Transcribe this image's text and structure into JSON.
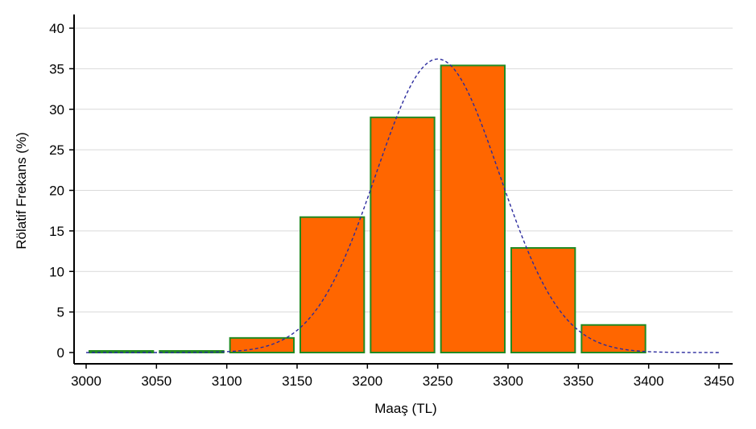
{
  "chart_data": {
    "type": "bar",
    "title": "",
    "xlabel": "Maaş (TL)",
    "ylabel": "Rölatif Frekans (%)",
    "xlim": [
      3000,
      3450
    ],
    "ylim": [
      -1.5,
      42
    ],
    "bin_width": 50,
    "bins": [
      {
        "start": 3000,
        "end": 3050,
        "value": 0.2
      },
      {
        "start": 3050,
        "end": 3100,
        "value": 0.2
      },
      {
        "start": 3100,
        "end": 3150,
        "value": 1.8
      },
      {
        "start": 3150,
        "end": 3200,
        "value": 16.7
      },
      {
        "start": 3200,
        "end": 3250,
        "value": 29.0
      },
      {
        "start": 3250,
        "end": 3300,
        "value": 35.4
      },
      {
        "start": 3300,
        "end": 3350,
        "value": 12.9
      },
      {
        "start": 3350,
        "end": 3400,
        "value": 3.4
      }
    ],
    "xticks": [
      3000,
      3050,
      3100,
      3150,
      3200,
      3250,
      3300,
      3350,
      3400,
      3450
    ],
    "yticks": [
      0,
      5,
      10,
      15,
      20,
      25,
      30,
      35,
      40
    ],
    "grid": {
      "y": true,
      "x": false
    },
    "normal_curve": {
      "mean": 3250,
      "sd": 44,
      "peak": 36.2,
      "style": "dashed",
      "color": "#2b2b9e"
    },
    "colors": {
      "bar_fill": "#ff6600",
      "bar_stroke": "#228b22",
      "axis": "#000000",
      "grid": "#d9d9d9"
    }
  }
}
